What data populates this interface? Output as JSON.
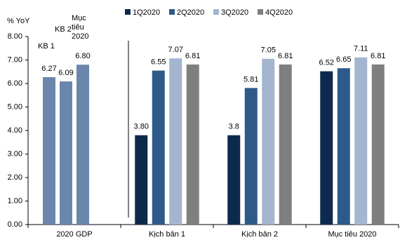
{
  "chart_data": {
    "type": "bar",
    "y_unit": "% YoY",
    "categories": [
      "2020 GDP",
      "Kịch bản 1",
      "Kịch bản 2",
      "Mục tiêu 2020"
    ],
    "gdp_bars": {
      "names": [
        "KB 1",
        "KB 2",
        "Mục tiêu 2020"
      ],
      "values": [
        6.27,
        6.09,
        6.8
      ],
      "value_labels": [
        "6.27",
        "6.09",
        "6.80"
      ],
      "color": "#6b86ad"
    },
    "series": [
      {
        "name": "1Q2020",
        "color": "#0d2a4d",
        "values": [
          null,
          3.8,
          3.8,
          6.52
        ],
        "value_labels": [
          null,
          "3.80",
          "3.8",
          "6.52"
        ]
      },
      {
        "name": "2Q2020",
        "color": "#2d5a89",
        "values": [
          null,
          6.55,
          5.81,
          6.65
        ]
      },
      {
        "name": "3Q2020",
        "color": "#a4b5d0",
        "values": [
          null,
          7.07,
          7.05,
          7.11
        ]
      },
      {
        "name": "4Q2020",
        "color": "#7f7f7f",
        "values": [
          null,
          6.81,
          6.81,
          6.81
        ]
      }
    ],
    "ylim": [
      0,
      8
    ],
    "yticks": [
      {
        "value": 0,
        "label": "0.00"
      },
      {
        "value": 1,
        "label": "1.00"
      },
      {
        "value": 2,
        "label": "2.00"
      },
      {
        "value": 3,
        "label": "3.00"
      },
      {
        "value": 4,
        "label": "4.00"
      },
      {
        "value": 5,
        "label": "5.00"
      },
      {
        "value": 6,
        "label": "6.00"
      },
      {
        "value": 7,
        "label": "7.00"
      },
      {
        "value": 8,
        "label": "8.00"
      }
    ]
  }
}
